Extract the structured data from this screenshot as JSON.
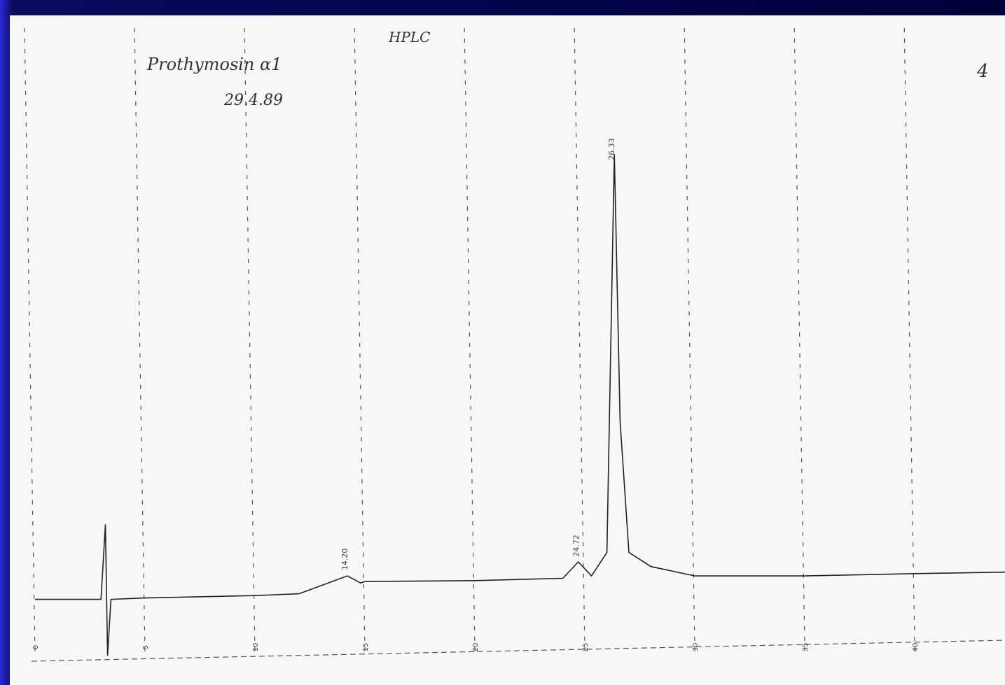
{
  "chart_data": {
    "type": "line",
    "title": "HPLC",
    "note": "Prothymosin α1",
    "date": "29.4.89",
    "page_number": "4",
    "x": [
      0,
      3.0,
      3.2,
      3.3,
      3.45,
      5,
      10,
      12,
      14.2,
      14.8,
      15,
      20,
      24,
      24.7,
      25.3,
      26.0,
      26.34,
      26.6,
      27,
      28,
      30,
      35,
      40,
      44.1
    ],
    "series": [
      {
        "color": "#222222",
        "values": [
          2,
          2,
          18,
          -10,
          2,
          2.3,
          2.8,
          3.2,
          7,
          5.5,
          5.8,
          6,
          6.5,
          10,
          7,
          12,
          97,
          40,
          12,
          9,
          7,
          7,
          7.5,
          7.8
        ]
      }
    ],
    "peaks": [
      {
        "x": 14.2,
        "label": "14.20"
      },
      {
        "x": 24.72,
        "label": "24.72"
      },
      {
        "x": 26.33,
        "label": "26.33"
      }
    ],
    "xlim": [
      0,
      44.1
    ],
    "xticks": [
      0,
      5,
      10,
      15,
      20,
      25,
      30,
      35,
      40
    ],
    "ylim": [
      -15,
      100
    ],
    "grid": true
  }
}
